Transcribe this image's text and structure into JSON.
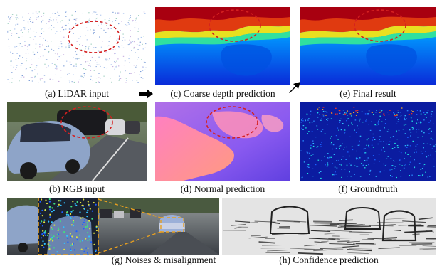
{
  "captions": {
    "a": "(a) LiDAR input",
    "b": "(b) RGB input",
    "c": "(c) Coarse depth prediction",
    "d": "(d) Normal prediction",
    "e": "(e) Final result",
    "f": "(f) Groundtruth",
    "g": "(g) Noises & misalignment",
    "h": "(h) Confidence prediction"
  },
  "colors": {
    "highlight_ellipse": "#d42020",
    "zoom_box": "#e8a020",
    "arrow": "#000000"
  }
}
